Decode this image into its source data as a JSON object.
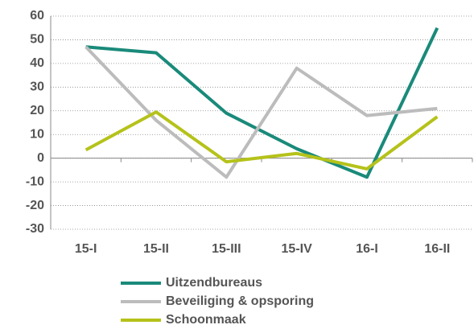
{
  "chart_data": {
    "type": "line",
    "categories": [
      "15-I",
      "15-II",
      "15-III",
      "15-IV",
      "16-I",
      "16-II"
    ],
    "series": [
      {
        "name": "Uitzendbureaus",
        "color": "#1a8a7a",
        "values": [
          47,
          44.5,
          19,
          4,
          -8,
          55
        ]
      },
      {
        "name": "Beveiliging & opsporing",
        "color": "#bcbcbc",
        "values": [
          47,
          16,
          -8,
          38,
          18,
          21
        ]
      },
      {
        "name": "Schoonmaak",
        "color": "#b5c21a",
        "values": [
          3.5,
          19.5,
          -1.5,
          2,
          -4.5,
          17.5
        ]
      }
    ],
    "ylim": [
      -30,
      60
    ],
    "yticks": [
      -30,
      -20,
      -10,
      0,
      10,
      20,
      30,
      40,
      50,
      60
    ],
    "grid": true,
    "legend": "bottom"
  }
}
